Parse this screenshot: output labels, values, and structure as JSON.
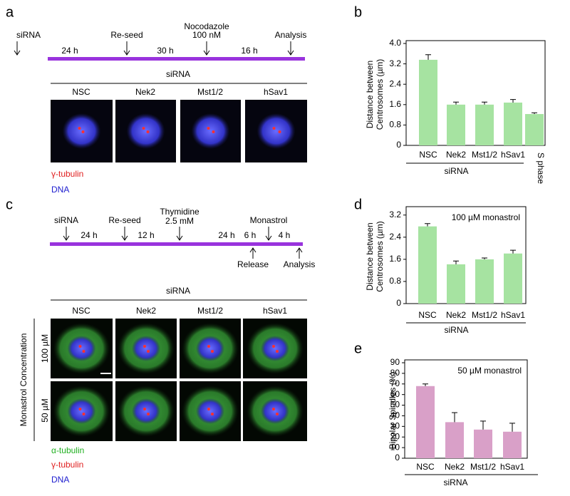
{
  "panel_labels": [
    "a",
    "b",
    "c",
    "d",
    "e"
  ],
  "timeline_a": {
    "events": [
      "siRNA",
      "Re-seed",
      "Nocodazole",
      "100 nM",
      "Analysis"
    ],
    "intervals": [
      "24 h",
      "30 h",
      "16 h"
    ]
  },
  "images_a": {
    "header": "siRNA",
    "columns": [
      "NSC",
      "Nek2",
      "Mst1/2",
      "hSav1"
    ],
    "legend": [
      "γ-tubulin",
      "DNA"
    ]
  },
  "timeline_c": {
    "events": [
      "siRNA",
      "Re-seed",
      "Thymidine",
      "2.5 mM",
      "Monastrol",
      "Release",
      "Analysis"
    ],
    "intervals": [
      "24 h",
      "12 h",
      "24 h",
      "6 h",
      "4 h"
    ]
  },
  "images_c": {
    "header": "siRNA",
    "columns": [
      "NSC",
      "Nek2",
      "Mst1/2",
      "hSav1"
    ],
    "row_title": "Monastrol Concentration",
    "rows": [
      "100 µM",
      "50 µM"
    ],
    "legend": [
      "α-tubulin",
      "γ-tubulin",
      "DNA"
    ]
  },
  "chart_data": [
    {
      "type": "bar",
      "ylabel": [
        "Distance between",
        "Centrosomes (µm)"
      ],
      "xlabel": "siRNA",
      "categories": [
        "NSC",
        "Nek2",
        "Mst1/2",
        "hSav1",
        "S phase"
      ],
      "values": [
        3.36,
        1.6,
        1.6,
        1.68,
        1.23
      ],
      "errors": [
        0.2,
        0.1,
        0.1,
        0.12,
        0.05
      ],
      "color": "#a6e3a1",
      "ylim": [
        0,
        4
      ],
      "yticks": [
        0,
        0.8,
        1.6,
        2.4,
        3.2,
        {
          "value": 4,
          "label": "4.0"
        }
      ]
    },
    {
      "type": "bar",
      "ylabel": [
        "Distance between",
        "Centrosomes (µm)"
      ],
      "xlabel": "siRNA",
      "annotation": "100 µM monastrol",
      "categories": [
        "NSC",
        "Nek2",
        "Mst1/2",
        "hSav1"
      ],
      "values": [
        2.79,
        1.42,
        1.6,
        1.81
      ],
      "errors": [
        0.1,
        0.12,
        0.05,
        0.12
      ],
      "color": "#a6e3a1",
      "ylim": [
        0,
        3.4
      ],
      "yticks": [
        0,
        0.8,
        1.6,
        2.4,
        3.2
      ]
    },
    {
      "type": "bar",
      "ylabel": [
        "Bipolar Spindles (%)"
      ],
      "xlabel": "siRNA",
      "annotation": "50 µM monastrol",
      "categories": [
        "NSC",
        "Nek2",
        "Mst1/2",
        "hSav1"
      ],
      "values": [
        68,
        34,
        27,
        25
      ],
      "errors": [
        2,
        9,
        8,
        8
      ],
      "color": "#d9a0c8",
      "ylim": [
        0,
        90
      ],
      "yticks": [
        0,
        10,
        20,
        30,
        40,
        50,
        60,
        70,
        80,
        90
      ]
    }
  ]
}
